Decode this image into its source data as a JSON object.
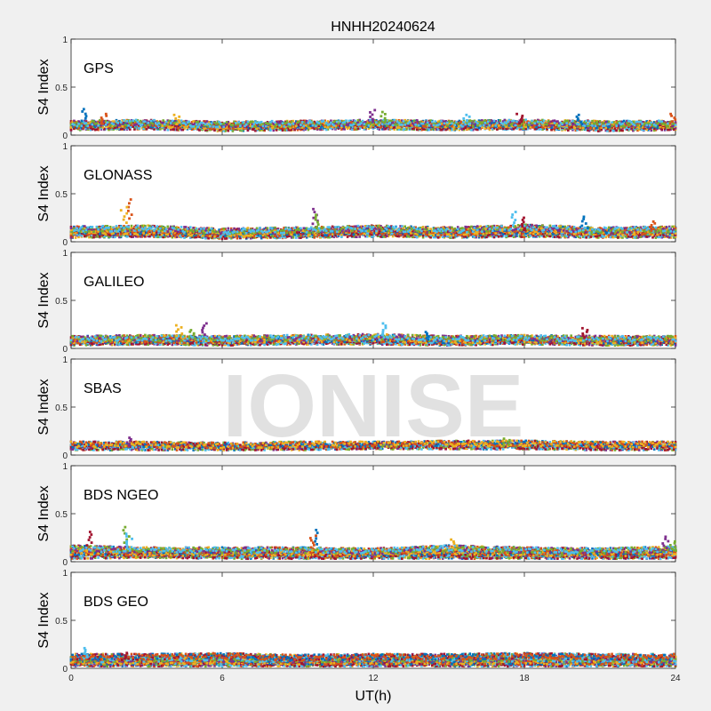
{
  "figure": {
    "title": "HNHH20240624",
    "xlabel": "UT(h)",
    "watermark": "IONISE"
  },
  "chart_data": {
    "type": "scatter",
    "xlim": [
      0,
      24
    ],
    "xticks": [
      0,
      6,
      12,
      18,
      24
    ],
    "ylim": [
      0,
      1
    ],
    "yticks": [
      0,
      0.5,
      1
    ],
    "ylabel": "S4 Index",
    "grid": false,
    "colors": [
      "#0072BD",
      "#D95319",
      "#EDB120",
      "#7E2F8E",
      "#77AC30",
      "#4DBEEE",
      "#A2142F"
    ],
    "panels": [
      {
        "system": "GPS",
        "baseline_series": [
          {
            "x": [
              0,
              3,
              6,
              9,
              12,
              15,
              18,
              21,
              24
            ],
            "y": [
              0.08,
              0.09,
              0.07,
              0.08,
              0.09,
              0.08,
              0.09,
              0.07,
              0.08
            ]
          },
          {
            "x": [
              0,
              3,
              6,
              9,
              12,
              15,
              18,
              21,
              24
            ],
            "y": [
              0.1,
              0.11,
              0.09,
              0.1,
              0.11,
              0.1,
              0.11,
              0.1,
              0.11
            ]
          },
          {
            "x": [
              0,
              3,
              6,
              9,
              12,
              15,
              18,
              21,
              24
            ],
            "y": [
              0.12,
              0.13,
              0.11,
              0.12,
              0.13,
              0.12,
              0.13,
              0.12,
              0.12
            ]
          }
        ],
        "peaks": [
          {
            "x": 0.5,
            "y": 0.27
          },
          {
            "x": 1.3,
            "y": 0.22
          },
          {
            "x": 4.2,
            "y": 0.21
          },
          {
            "x": 12.0,
            "y": 0.26
          },
          {
            "x": 12.4,
            "y": 0.24
          },
          {
            "x": 15.7,
            "y": 0.21
          },
          {
            "x": 17.8,
            "y": 0.22
          },
          {
            "x": 20.2,
            "y": 0.21
          },
          {
            "x": 23.9,
            "y": 0.22
          }
        ]
      },
      {
        "system": "GLONASS",
        "baseline_series": [
          {
            "x": [
              0,
              3,
              6,
              9,
              12,
              15,
              18,
              21,
              24
            ],
            "y": [
              0.07,
              0.08,
              0.06,
              0.07,
              0.08,
              0.07,
              0.08,
              0.07,
              0.07
            ]
          },
          {
            "x": [
              0,
              3,
              6,
              9,
              12,
              15,
              18,
              21,
              24
            ],
            "y": [
              0.1,
              0.1,
              0.08,
              0.09,
              0.11,
              0.09,
              0.11,
              0.1,
              0.1
            ]
          },
          {
            "x": [
              0,
              3,
              6,
              9,
              12,
              15,
              18,
              21,
              24
            ],
            "y": [
              0.13,
              0.14,
              0.11,
              0.12,
              0.14,
              0.12,
              0.15,
              0.12,
              0.13
            ]
          }
        ],
        "peaks": [
          {
            "x": 2.3,
            "y": 0.44
          },
          {
            "x": 2.1,
            "y": 0.36
          },
          {
            "x": 9.7,
            "y": 0.34
          },
          {
            "x": 9.8,
            "y": 0.28
          },
          {
            "x": 17.6,
            "y": 0.31
          },
          {
            "x": 18.0,
            "y": 0.25
          },
          {
            "x": 20.4,
            "y": 0.26
          },
          {
            "x": 23.1,
            "y": 0.21
          }
        ]
      },
      {
        "system": "GALILEO",
        "baseline_series": [
          {
            "x": [
              0,
              3,
              6,
              9,
              12,
              15,
              18,
              21,
              24
            ],
            "y": [
              0.06,
              0.07,
              0.06,
              0.07,
              0.07,
              0.06,
              0.07,
              0.06,
              0.06
            ]
          },
          {
            "x": [
              0,
              3,
              6,
              9,
              12,
              15,
              18,
              21,
              24
            ],
            "y": [
              0.08,
              0.09,
              0.08,
              0.09,
              0.1,
              0.08,
              0.09,
              0.08,
              0.08
            ]
          },
          {
            "x": [
              0,
              3,
              6,
              9,
              12,
              15,
              18,
              21,
              24
            ],
            "y": [
              0.1,
              0.11,
              0.1,
              0.11,
              0.12,
              0.1,
              0.11,
              0.1,
              0.1
            ]
          }
        ],
        "peaks": [
          {
            "x": 4.3,
            "y": 0.24
          },
          {
            "x": 5.3,
            "y": 0.26
          },
          {
            "x": 4.8,
            "y": 0.19
          },
          {
            "x": 12.5,
            "y": 0.26
          },
          {
            "x": 20.4,
            "y": 0.21
          },
          {
            "x": 14.1,
            "y": 0.17
          }
        ]
      },
      {
        "system": "SBAS",
        "baseline_series": [
          {
            "x": [
              0,
              3,
              6,
              9,
              12,
              15,
              18,
              21,
              24
            ],
            "y": [
              0.08,
              0.08,
              0.08,
              0.08,
              0.09,
              0.09,
              0.09,
              0.08,
              0.08
            ]
          },
          {
            "x": [
              0,
              3,
              6,
              9,
              12,
              15,
              18,
              21,
              24
            ],
            "y": [
              0.11,
              0.11,
              0.1,
              0.11,
              0.11,
              0.12,
              0.12,
              0.11,
              0.11
            ]
          }
        ],
        "peaks": [
          {
            "x": 2.3,
            "y": 0.18
          },
          {
            "x": 17.3,
            "y": 0.17
          }
        ]
      },
      {
        "system": "BDS NGEO",
        "baseline_series": [
          {
            "x": [
              0,
              3,
              6,
              9,
              12,
              15,
              18,
              21,
              24
            ],
            "y": [
              0.06,
              0.07,
              0.06,
              0.06,
              0.06,
              0.06,
              0.06,
              0.06,
              0.06
            ]
          },
          {
            "x": [
              0,
              3,
              6,
              9,
              12,
              15,
              18,
              21,
              24
            ],
            "y": [
              0.1,
              0.09,
              0.09,
              0.09,
              0.08,
              0.1,
              0.09,
              0.09,
              0.09
            ]
          },
          {
            "x": [
              0,
              3,
              6,
              9,
              12,
              15,
              18,
              21,
              24
            ],
            "y": [
              0.14,
              0.12,
              0.12,
              0.12,
              0.11,
              0.14,
              0.12,
              0.11,
              0.13
            ]
          }
        ],
        "peaks": [
          {
            "x": 2.2,
            "y": 0.36
          },
          {
            "x": 2.3,
            "y": 0.29
          },
          {
            "x": 0.7,
            "y": 0.31
          },
          {
            "x": 9.7,
            "y": 0.33
          },
          {
            "x": 9.6,
            "y": 0.27
          },
          {
            "x": 15.2,
            "y": 0.23
          },
          {
            "x": 23.6,
            "y": 0.26
          },
          {
            "x": 23.9,
            "y": 0.21
          }
        ]
      },
      {
        "system": "BDS GEO",
        "baseline_series": [
          {
            "x": [
              0,
              3,
              6,
              9,
              12,
              15,
              18,
              21,
              24
            ],
            "y": [
              0.05,
              0.05,
              0.05,
              0.05,
              0.05,
              0.05,
              0.05,
              0.05,
              0.05
            ]
          },
          {
            "x": [
              0,
              3,
              6,
              9,
              12,
              15,
              18,
              21,
              24
            ],
            "y": [
              0.07,
              0.07,
              0.07,
              0.07,
              0.07,
              0.07,
              0.07,
              0.07,
              0.07
            ]
          },
          {
            "x": [
              0,
              3,
              6,
              9,
              12,
              15,
              18,
              21,
              24
            ],
            "y": [
              0.09,
              0.1,
              0.1,
              0.09,
              0.1,
              0.1,
              0.1,
              0.09,
              0.09
            ]
          },
          {
            "x": [
              0,
              3,
              6,
              9,
              12,
              15,
              18,
              21,
              24
            ],
            "y": [
              0.12,
              0.12,
              0.13,
              0.11,
              0.12,
              0.12,
              0.13,
              0.12,
              0.12
            ]
          }
        ],
        "peaks": [
          {
            "x": 0.6,
            "y": 0.21
          },
          {
            "x": 2.1,
            "y": 0.16
          }
        ]
      }
    ]
  }
}
